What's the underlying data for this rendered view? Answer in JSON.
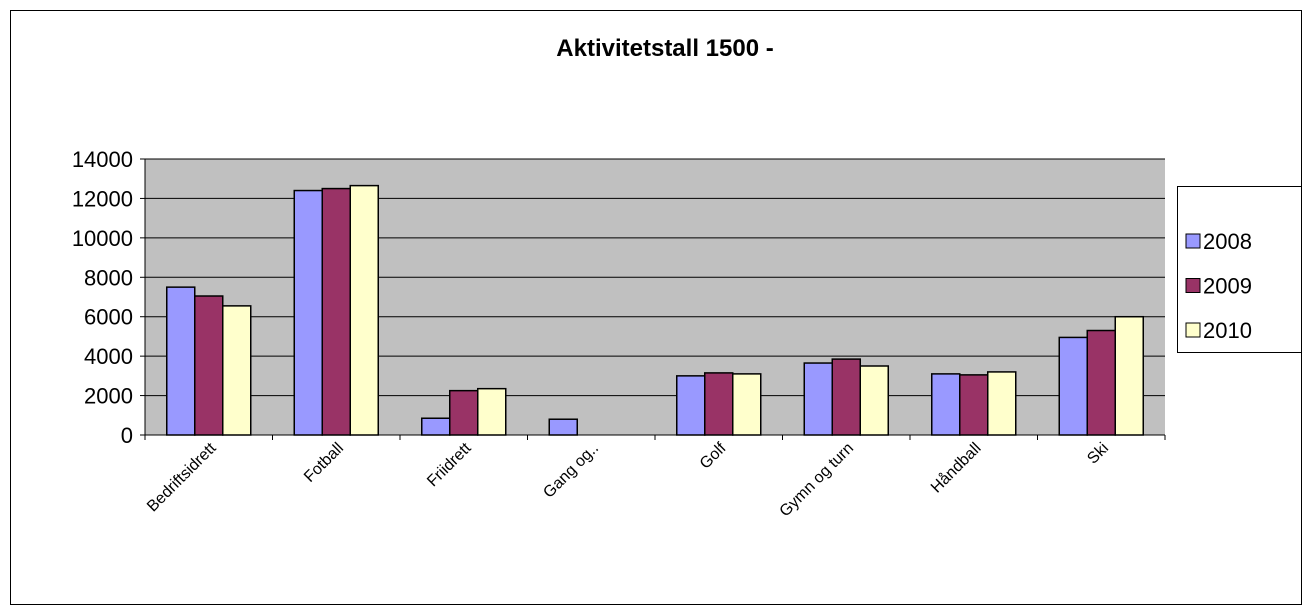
{
  "chart_data": {
    "type": "bar",
    "title": "Aktivitetstall 1500 -",
    "categories": [
      "Bedriftsidrett",
      "Fotball",
      "Friidrett",
      "Gang og..",
      "Golf",
      "Gymn og turn",
      "Håndball",
      "Ski"
    ],
    "series": [
      {
        "name": "2008",
        "color": "#9999ff",
        "values": [
          7500,
          12400,
          850,
          800,
          3000,
          3650,
          3100,
          4950
        ]
      },
      {
        "name": "2009",
        "color": "#993366",
        "values": [
          7050,
          12500,
          2250,
          null,
          3150,
          3850,
          3050,
          5300
        ]
      },
      {
        "name": "2010",
        "color": "#ffffcc",
        "values": [
          6550,
          12650,
          2350,
          null,
          3100,
          3500,
          3200,
          6000
        ]
      }
    ],
    "ylim": [
      0,
      14000
    ],
    "yticks": [
      0,
      2000,
      4000,
      6000,
      8000,
      10000,
      12000,
      14000
    ],
    "grid": true,
    "legend": "right"
  }
}
